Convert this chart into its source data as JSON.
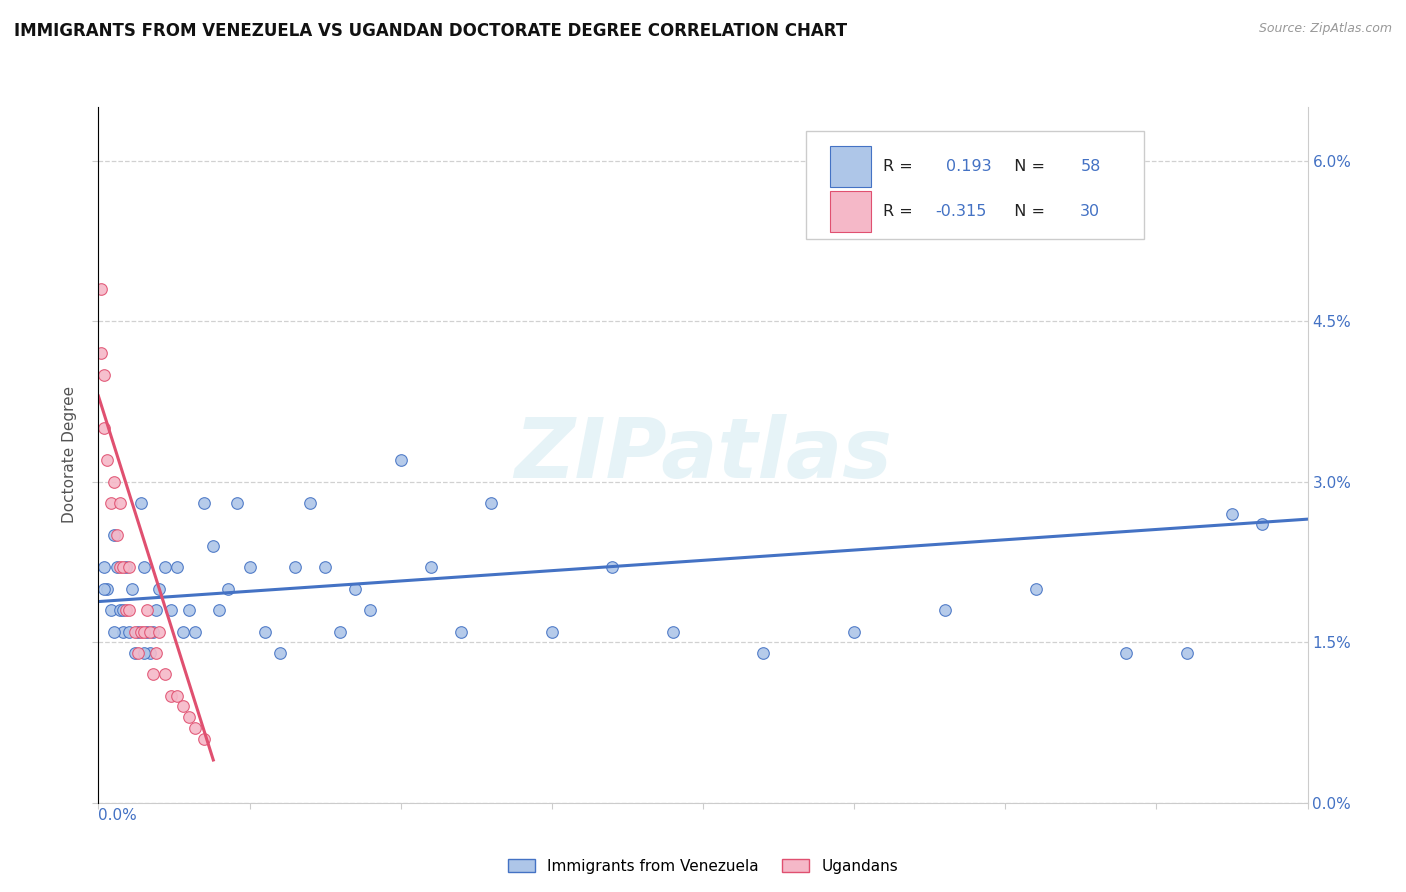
{
  "title": "IMMIGRANTS FROM VENEZUELA VS UGANDAN DOCTORATE DEGREE CORRELATION CHART",
  "source": "Source: ZipAtlas.com",
  "ylabel": "Doctorate Degree",
  "legend_label1": "Immigrants from Venezuela",
  "legend_label2": "Ugandans",
  "r1": "0.193",
  "n1": "58",
  "r2": "-0.315",
  "n2": "30",
  "color1": "#aec6e8",
  "color2": "#f5b8c8",
  "line_color1": "#4472c4",
  "line_color2": "#e05070",
  "watermark": "ZIPatlas",
  "xlim": [
    0.0,
    0.4
  ],
  "ylim": [
    0.0,
    0.065
  ],
  "right_yticks": [
    0.0,
    0.015,
    0.03,
    0.045,
    0.06
  ],
  "right_yticklabels": [
    "0.0%",
    "1.5%",
    "3.0%",
    "4.5%",
    "6.0%"
  ],
  "blue_x": [
    0.002,
    0.003,
    0.004,
    0.005,
    0.006,
    0.007,
    0.008,
    0.009,
    0.01,
    0.011,
    0.012,
    0.013,
    0.014,
    0.015,
    0.016,
    0.017,
    0.018,
    0.019,
    0.02,
    0.022,
    0.024,
    0.026,
    0.028,
    0.03,
    0.032,
    0.035,
    0.038,
    0.04,
    0.043,
    0.046,
    0.05,
    0.055,
    0.06,
    0.065,
    0.07,
    0.075,
    0.08,
    0.085,
    0.09,
    0.1,
    0.11,
    0.12,
    0.13,
    0.15,
    0.17,
    0.19,
    0.22,
    0.25,
    0.28,
    0.31,
    0.34,
    0.36,
    0.375,
    0.385,
    0.002,
    0.005,
    0.008,
    0.015
  ],
  "blue_y": [
    0.022,
    0.02,
    0.018,
    0.025,
    0.022,
    0.018,
    0.016,
    0.022,
    0.016,
    0.02,
    0.014,
    0.016,
    0.028,
    0.022,
    0.016,
    0.014,
    0.016,
    0.018,
    0.02,
    0.022,
    0.018,
    0.022,
    0.016,
    0.018,
    0.016,
    0.028,
    0.024,
    0.018,
    0.02,
    0.028,
    0.022,
    0.016,
    0.014,
    0.022,
    0.028,
    0.022,
    0.016,
    0.02,
    0.018,
    0.032,
    0.022,
    0.016,
    0.028,
    0.016,
    0.022,
    0.016,
    0.014,
    0.016,
    0.018,
    0.02,
    0.014,
    0.014,
    0.027,
    0.026,
    0.02,
    0.016,
    0.018,
    0.014
  ],
  "pink_x": [
    0.001,
    0.001,
    0.002,
    0.002,
    0.003,
    0.004,
    0.005,
    0.006,
    0.007,
    0.007,
    0.008,
    0.009,
    0.01,
    0.01,
    0.012,
    0.013,
    0.014,
    0.015,
    0.016,
    0.017,
    0.018,
    0.019,
    0.02,
    0.022,
    0.024,
    0.026,
    0.028,
    0.03,
    0.032,
    0.035
  ],
  "pink_y": [
    0.048,
    0.042,
    0.04,
    0.035,
    0.032,
    0.028,
    0.03,
    0.025,
    0.028,
    0.022,
    0.022,
    0.018,
    0.022,
    0.018,
    0.016,
    0.014,
    0.016,
    0.016,
    0.018,
    0.016,
    0.012,
    0.014,
    0.016,
    0.012,
    0.01,
    0.01,
    0.009,
    0.008,
    0.007,
    0.006
  ],
  "blue_trend_x": [
    0.0,
    0.4
  ],
  "blue_trend_y": [
    0.0188,
    0.0265
  ],
  "pink_trend_x": [
    0.0,
    0.038
  ],
  "pink_trend_y": [
    0.038,
    0.004
  ]
}
